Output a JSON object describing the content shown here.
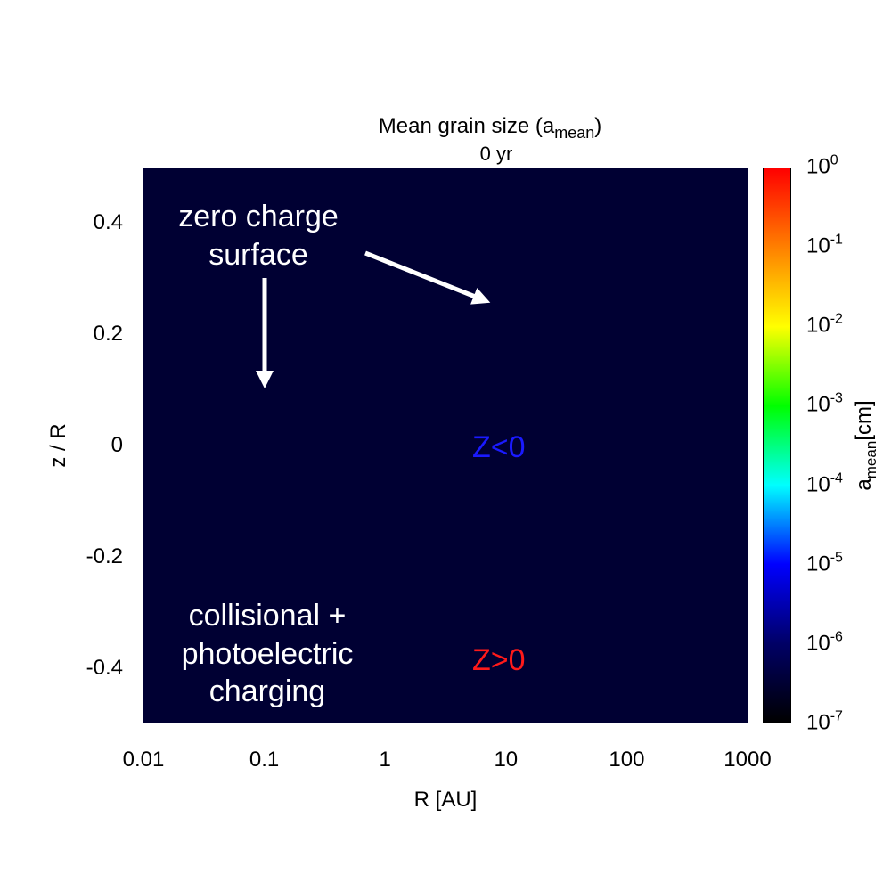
{
  "chart_data": {
    "type": "heatmap",
    "title": "Mean grain size (a",
    "title_sub": "mean",
    "title_end": ")",
    "subtitle": "0 yr",
    "xlabel": "R [AU]",
    "ylabel": "z / R",
    "xscale": "log",
    "xlim": [
      0.01,
      1000
    ],
    "ylim": [
      -0.5,
      0.5
    ],
    "xticks": [
      "0.01",
      "0.1",
      "1",
      "10",
      "100",
      "1000"
    ],
    "yticks": [
      "0.4",
      "0.2",
      "0",
      "-0.2",
      "-0.4"
    ],
    "ytick_values": [
      0.4,
      0.2,
      0,
      -0.2,
      -0.4
    ],
    "field_value_cm": 1e-07,
    "field_color": "#000033",
    "colorbar": {
      "label": "a",
      "label_sub": "mean",
      "label_end": "[cm]",
      "scale": "log",
      "range": [
        1e-07,
        1
      ],
      "tick_bases": [
        "10",
        "10",
        "10",
        "10",
        "10",
        "10",
        "10",
        "10"
      ],
      "tick_exponents": [
        "0",
        "-1",
        "-2",
        "-3",
        "-4",
        "-5",
        "-6",
        "-7"
      ],
      "tick_log_values": [
        0,
        -1,
        -2,
        -3,
        -4,
        -5,
        -6,
        -7
      ],
      "colors": [
        "#000000",
        "#000066",
        "#0000ff",
        "#00ffff",
        "#00ff00",
        "#ffff00",
        "#ff8000",
        "#ff0000"
      ]
    },
    "annotations": {
      "top_left": [
        "zero charge",
        "surface"
      ],
      "bottom_left": [
        "collisional +",
        "photoelectric",
        "charging"
      ],
      "z_neg": "Z<0",
      "z_pos": "Z>0",
      "z_neg_color": "#1a1aff",
      "z_pos_color": "#ff1a1a"
    }
  }
}
